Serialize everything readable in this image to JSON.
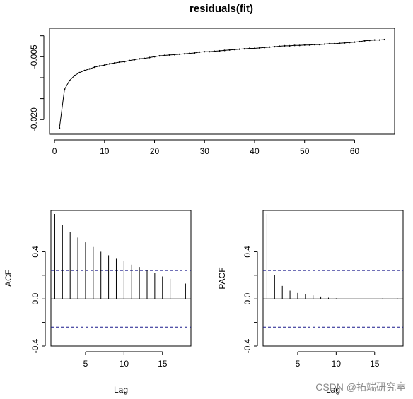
{
  "watermark": "CSDN @拓端研究室",
  "chart_data": [
    {
      "type": "line",
      "title": "residuals(fit)",
      "xlabel": "",
      "ylabel": "",
      "x_ticks": [
        "0",
        "10",
        "20",
        "30",
        "40",
        "50",
        "60"
      ],
      "y_ticks": [
        "-0.020",
        "-0.005"
      ],
      "xlim": [
        -1,
        68
      ],
      "ylim": [
        -0.0235,
        0.0018
      ],
      "grid": false,
      "series": [
        {
          "x": [
            1,
            2,
            3,
            4,
            5,
            6,
            7,
            8,
            9,
            10,
            11,
            12,
            13,
            14,
            15,
            16,
            17,
            18,
            19,
            20,
            21,
            22,
            23,
            24,
            25,
            26,
            27,
            28,
            29,
            30,
            31,
            32,
            33,
            34,
            35,
            36,
            37,
            38,
            39,
            40,
            41,
            42,
            43,
            44,
            45,
            46,
            47,
            48,
            49,
            50,
            51,
            52,
            53,
            54,
            55,
            56,
            57,
            58,
            59,
            60,
            61,
            62,
            63,
            64,
            65,
            66
          ],
          "values": [
            -0.022,
            -0.0128,
            -0.0107,
            -0.0095,
            -0.0088,
            -0.0083,
            -0.0079,
            -0.0075,
            -0.0072,
            -0.007,
            -0.0067,
            -0.0065,
            -0.0063,
            -0.0062,
            -0.0059,
            -0.0057,
            -0.0055,
            -0.0054,
            -0.0052,
            -0.005,
            -0.0048,
            -0.0047,
            -0.0046,
            -0.0045,
            -0.0044,
            -0.0043,
            -0.0042,
            -0.0041,
            -0.0039,
            -0.0038,
            -0.0038,
            -0.0037,
            -0.0036,
            -0.0035,
            -0.0034,
            -0.0033,
            -0.0032,
            -0.0031,
            -0.003,
            -0.003,
            -0.0029,
            -0.0028,
            -0.0027,
            -0.0026,
            -0.0025,
            -0.0024,
            -0.0024,
            -0.0023,
            -0.0023,
            -0.0022,
            -0.0022,
            -0.0021,
            -0.0021,
            -0.002,
            -0.0019,
            -0.0019,
            -0.0018,
            -0.0017,
            -0.0016,
            -0.0015,
            -0.0014,
            -0.0012,
            -0.0011,
            -0.001,
            -0.001,
            -0.0009
          ]
        }
      ]
    },
    {
      "type": "bar",
      "title": "",
      "xlabel": "Lag",
      "ylabel": "ACF",
      "x_ticks": [
        "5",
        "10",
        "15"
      ],
      "y_ticks": [
        "-0.4",
        "0.0",
        "0.4"
      ],
      "xlim": [
        0.5,
        18.7
      ],
      "ylim": [
        -0.4,
        0.75
      ],
      "grid": false,
      "ci": 0.24,
      "categories": [
        1,
        2,
        3,
        4,
        5,
        6,
        7,
        8,
        9,
        10,
        11,
        12,
        13,
        14,
        15,
        16,
        17,
        18
      ],
      "values": [
        0.72,
        0.63,
        0.57,
        0.52,
        0.48,
        0.44,
        0.4,
        0.37,
        0.34,
        0.32,
        0.29,
        0.27,
        0.24,
        0.22,
        0.19,
        0.17,
        0.15,
        0.13
      ]
    },
    {
      "type": "bar",
      "title": "",
      "xlabel": "Lag",
      "ylabel": "PACF",
      "x_ticks": [
        "5",
        "10",
        "15"
      ],
      "y_ticks": [
        "-0.4",
        "0.0",
        "0.4"
      ],
      "xlim": [
        0.5,
        18.7
      ],
      "ylim": [
        -0.4,
        0.75
      ],
      "grid": false,
      "ci": 0.24,
      "categories": [
        1,
        2,
        3,
        4,
        5,
        6,
        7,
        8,
        9,
        10,
        11,
        12,
        13,
        14,
        15,
        16,
        17,
        18
      ],
      "values": [
        0.72,
        0.2,
        0.11,
        0.07,
        0.05,
        0.04,
        0.03,
        0.02,
        0.01,
        0.005,
        0.0,
        0.0,
        0.0,
        0.0,
        0.0,
        0.003,
        0.004,
        0.003
      ]
    }
  ]
}
